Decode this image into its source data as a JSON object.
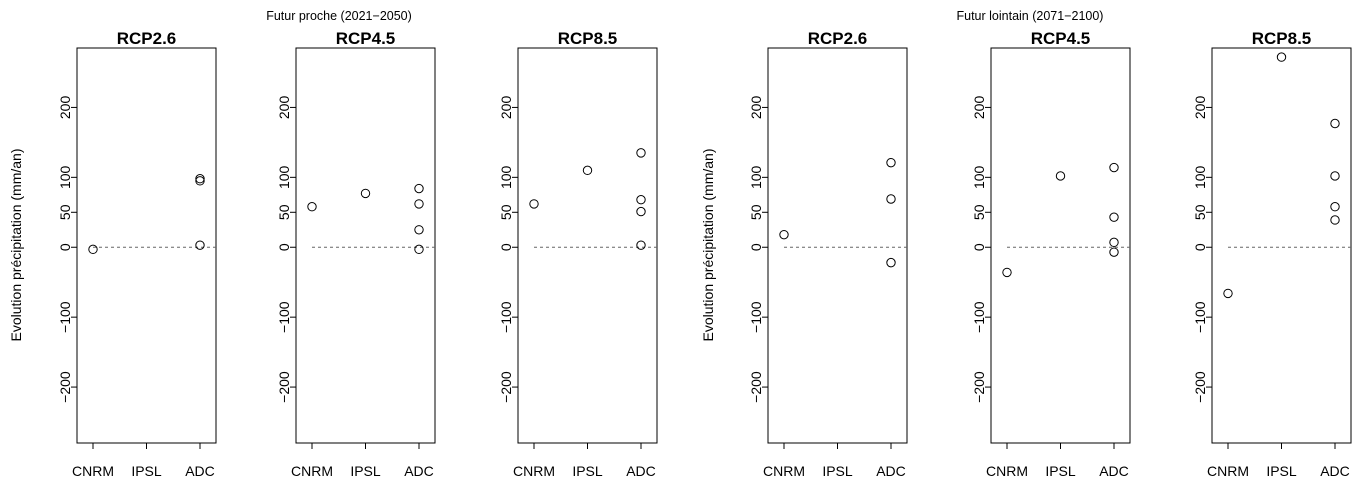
{
  "figure": {
    "supertitles": [
      "Futur proche (2021−2050)",
      "Futur lointain (2071−2100)"
    ],
    "ylabel": "Evolution précipitation (mm/an)"
  },
  "chart_data": [
    {
      "type": "scatter",
      "title": "RCP2.6",
      "group": "Futur proche (2021−2050)",
      "categories": [
        "CNRM",
        "IPSL",
        "ADC"
      ],
      "ylim": [
        -280,
        285
      ],
      "yticks": [
        -200,
        -100,
        0,
        50,
        100,
        200
      ],
      "reference_line": 0,
      "points": [
        {
          "category": "CNRM",
          "value": -3
        },
        {
          "category": "ADC",
          "value": 98
        },
        {
          "category": "ADC",
          "value": 95
        },
        {
          "category": "ADC",
          "value": 3
        }
      ]
    },
    {
      "type": "scatter",
      "title": "RCP4.5",
      "group": "Futur proche (2021−2050)",
      "categories": [
        "CNRM",
        "IPSL",
        "ADC"
      ],
      "ylim": [
        -280,
        285
      ],
      "yticks": [
        -200,
        -100,
        0,
        50,
        100,
        200
      ],
      "reference_line": 0,
      "points": [
        {
          "category": "CNRM",
          "value": 58
        },
        {
          "category": "IPSL",
          "value": 77
        },
        {
          "category": "ADC",
          "value": 84
        },
        {
          "category": "ADC",
          "value": 62
        },
        {
          "category": "ADC",
          "value": 25
        },
        {
          "category": "ADC",
          "value": -3
        }
      ]
    },
    {
      "type": "scatter",
      "title": "RCP8.5",
      "group": "Futur proche (2021−2050)",
      "categories": [
        "CNRM",
        "IPSL",
        "ADC"
      ],
      "ylim": [
        -280,
        285
      ],
      "yticks": [
        -200,
        -100,
        0,
        50,
        100,
        200
      ],
      "reference_line": 0,
      "points": [
        {
          "category": "CNRM",
          "value": 62
        },
        {
          "category": "IPSL",
          "value": 110
        },
        {
          "category": "ADC",
          "value": 135
        },
        {
          "category": "ADC",
          "value": 68
        },
        {
          "category": "ADC",
          "value": 51
        },
        {
          "category": "ADC",
          "value": 3
        }
      ]
    },
    {
      "type": "scatter",
      "title": "RCP2.6",
      "group": "Futur lointain (2071−2100)",
      "categories": [
        "CNRM",
        "IPSL",
        "ADC"
      ],
      "ylim": [
        -280,
        285
      ],
      "yticks": [
        -200,
        -100,
        0,
        50,
        100,
        200
      ],
      "reference_line": 0,
      "points": [
        {
          "category": "CNRM",
          "value": 18
        },
        {
          "category": "ADC",
          "value": 121
        },
        {
          "category": "ADC",
          "value": 69
        },
        {
          "category": "ADC",
          "value": -22
        }
      ]
    },
    {
      "type": "scatter",
      "title": "RCP4.5",
      "group": "Futur lointain (2071−2100)",
      "categories": [
        "CNRM",
        "IPSL",
        "ADC"
      ],
      "ylim": [
        -280,
        285
      ],
      "yticks": [
        -200,
        -100,
        0,
        50,
        100,
        200
      ],
      "reference_line": 0,
      "points": [
        {
          "category": "CNRM",
          "value": -36
        },
        {
          "category": "IPSL",
          "value": 102
        },
        {
          "category": "ADC",
          "value": 114
        },
        {
          "category": "ADC",
          "value": 43
        },
        {
          "category": "ADC",
          "value": 7
        },
        {
          "category": "ADC",
          "value": -7
        }
      ]
    },
    {
      "type": "scatter",
      "title": "RCP8.5",
      "group": "Futur lointain (2071−2100)",
      "categories": [
        "CNRM",
        "IPSL",
        "ADC"
      ],
      "ylim": [
        -280,
        285
      ],
      "yticks": [
        -200,
        -100,
        0,
        50,
        100,
        200
      ],
      "reference_line": 0,
      "points": [
        {
          "category": "CNRM",
          "value": -66
        },
        {
          "category": "IPSL",
          "value": 272
        },
        {
          "category": "ADC",
          "value": 177
        },
        {
          "category": "ADC",
          "value": 102
        },
        {
          "category": "ADC",
          "value": 58
        },
        {
          "category": "ADC",
          "value": 39
        }
      ]
    }
  ]
}
